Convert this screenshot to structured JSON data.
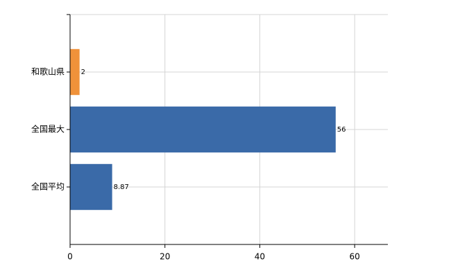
{
  "chart_data": {
    "type": "bar",
    "orientation": "horizontal",
    "categories": [
      "和歌山県",
      "全国最大",
      "全国平均"
    ],
    "values": [
      2,
      56,
      8.87
    ],
    "colors": [
      "#f0923a",
      "#3a6aa8",
      "#3a6aa8"
    ],
    "xlim": [
      0,
      67
    ],
    "xticks": [
      0,
      20,
      40,
      60
    ],
    "grid": true
  }
}
